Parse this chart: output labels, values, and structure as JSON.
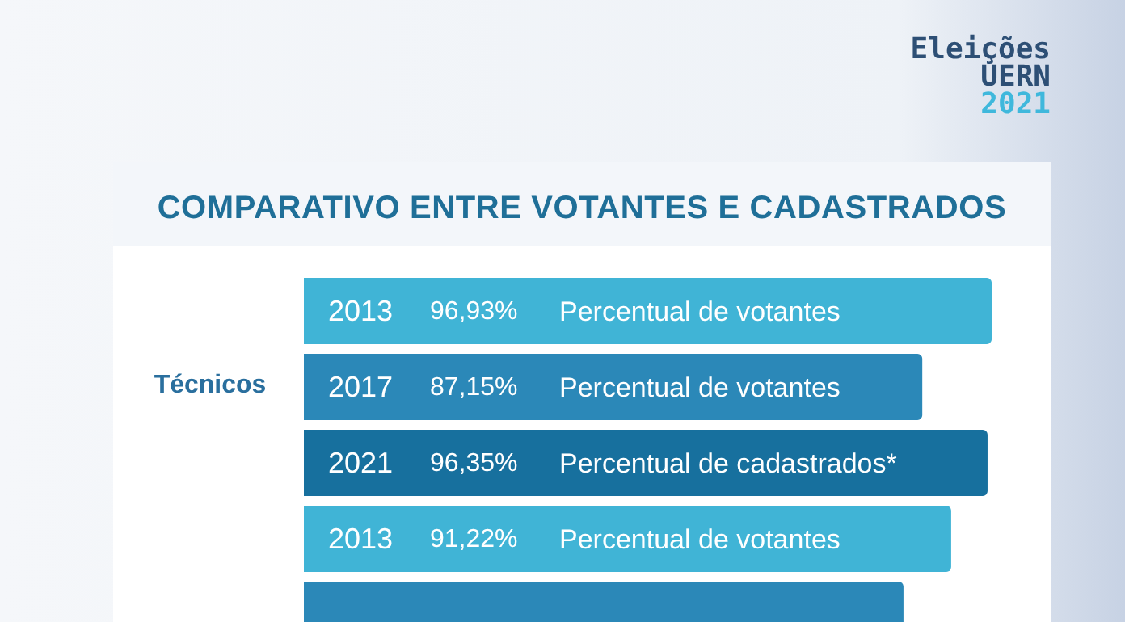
{
  "chart_data": {
    "type": "bar",
    "orientation": "horizontal",
    "title": "COMPARATIVO ENTRE VOTANTES E CADASTRADOS",
    "subtitle": "Eleições UERN 2021",
    "categories": [
      "2013",
      "2017",
      "2021",
      "2013",
      null
    ],
    "values": [
      96.93,
      87.15,
      96.35,
      91.22,
      84.5
    ],
    "colors": [
      "#40b4d6",
      "#2b88b8",
      "#17709e",
      "#40b4d6",
      "#2b88b8"
    ],
    "value_labels": [
      "96,93%",
      "87,15%",
      "96,35%",
      "91,22%",
      null
    ],
    "annotations": [
      "Técnicos",
      "Percentual de votantes",
      "Percentual de votantes",
      "Percentual de cadastrados*",
      "Percentual de votantes"
    ],
    "tick_labels": false
  }
}
